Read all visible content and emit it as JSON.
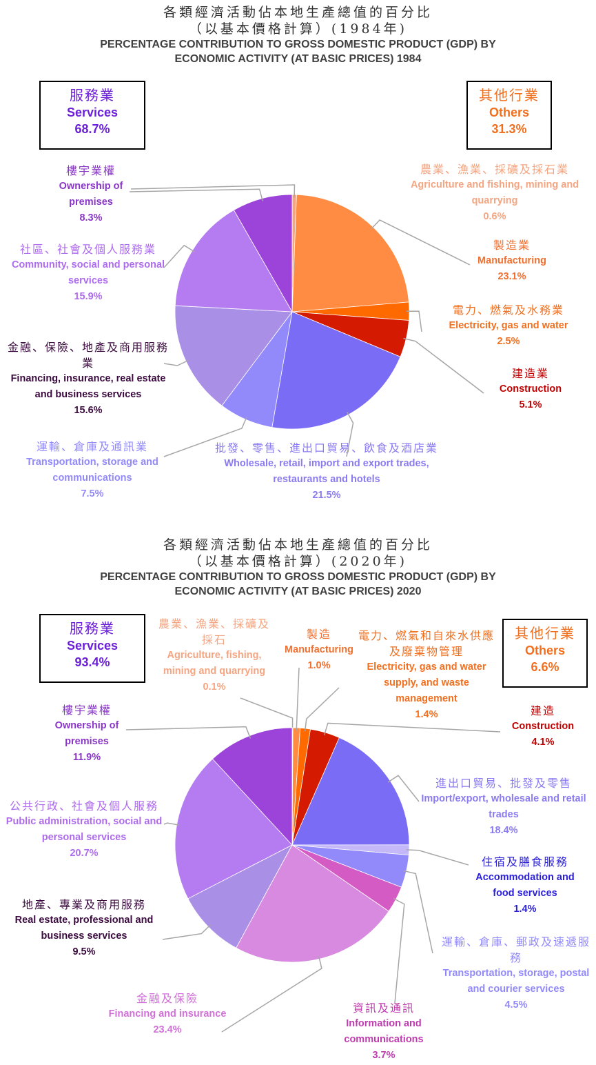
{
  "charts": [
    {
      "title_zh_1": "各類經濟活動佔本地生產總值的百分比",
      "title_zh_2": "（以基本價格計算）(1984年)",
      "title_en_1": "PERCENTAGE CONTRIBUTION TO GROSS DOMESTIC PRODUCT (GDP) BY",
      "title_en_2": "ECONOMIC ACTIVITY (AT BASIC PRICES) 1984",
      "services_box": {
        "zh": "服務業",
        "en": "Services",
        "pct": "68.7%"
      },
      "others_box": {
        "zh": "其他行業",
        "en": "Others",
        "pct": "31.3%"
      },
      "labels": [
        {
          "zh": "農業、漁業、採礦及採石業",
          "en": "Agriculture and fishing, mining and quarrying",
          "pct": "0.6%"
        },
        {
          "zh": "製造業",
          "en": "Manufacturing",
          "pct": "23.1%"
        },
        {
          "zh": "電力、燃氣及水務業",
          "en": "Electricity, gas and water",
          "pct": "2.5%"
        },
        {
          "zh": "建造業",
          "en": "Construction",
          "pct": "5.1%"
        },
        {
          "zh": "批發、零售、進出口貿易、飲食及酒店業",
          "en": "Wholesale, retail, import and export trades, restaurants and hotels",
          "pct": "21.5%"
        },
        {
          "zh": "運輸、倉庫及通訊業",
          "en": "Transportation, storage and communications",
          "pct": "7.5%"
        },
        {
          "zh": "金融、保險、地產及商用服務業",
          "en": "Financing, insurance, real estate and business services",
          "pct": "15.6%"
        },
        {
          "zh": "社區、社會及個人服務業",
          "en": "Community, social and personal services",
          "pct": "15.9%"
        },
        {
          "zh": "樓宇業權",
          "en": "Ownership of premises",
          "pct": "8.3%"
        }
      ]
    },
    {
      "title_zh_1": "各類經濟活動佔本地生產總值的百分比",
      "title_zh_2": "（以基本價格計算）(2020年)",
      "title_en_1": "PERCENTAGE CONTRIBUTION TO GROSS DOMESTIC PRODUCT (GDP) BY",
      "title_en_2": "ECONOMIC ACTIVITY (AT BASIC PRICES) 2020",
      "services_box": {
        "zh": "服務業",
        "en": "Services",
        "pct": "93.4%"
      },
      "others_box": {
        "zh": "其他行業",
        "en": "Others",
        "pct": "6.6%"
      },
      "labels": [
        {
          "zh": "農業、漁業、採礦及採石",
          "en": "Agriculture, fishing, mining and quarrying",
          "pct": "0.1%"
        },
        {
          "zh": "製造",
          "en": "Manufacturing",
          "pct": "1.0%"
        },
        {
          "zh": "電力、燃氣和自來水供應及廢棄物管理",
          "en": "Electricity, gas and water supply, and waste management",
          "pct": "1.4%"
        },
        {
          "zh": "建造",
          "en": "Construction",
          "pct": "4.1%"
        },
        {
          "zh": "進出口貿易、批發及零售",
          "en": "Import/export, wholesale and retail trades",
          "pct": "18.4%"
        },
        {
          "zh": "住宿及膳食服務",
          "en": "Accommodation and food services",
          "pct": "1.4%"
        },
        {
          "zh": "運輸、倉庫、郵政及速遞服務",
          "en": "Transportation, storage, postal and courier services",
          "pct": "4.5%"
        },
        {
          "zh": "資訊及通訊",
          "en": "Information and communications",
          "pct": "3.7%"
        },
        {
          "zh": "金融及保險",
          "en": "Financing and insurance",
          "pct": "23.4%"
        },
        {
          "zh": "地產、專業及商用服務",
          "en": "Real estate, professional and business services",
          "pct": "9.5%"
        },
        {
          "zh": "公共行政、社會及個人服務",
          "en": "Public administration, social and personal services",
          "pct": "20.7%"
        },
        {
          "zh": "樓宇業權",
          "en": "Ownership of premises",
          "pct": "11.9%"
        }
      ]
    }
  ],
  "chart_data": [
    {
      "type": "pie",
      "title": "PERCENTAGE CONTRIBUTION TO GROSS DOMESTIC PRODUCT (GDP) BY ECONOMIC ACTIVITY (AT BASIC PRICES) 1984",
      "categories": [
        "Agriculture and fishing, mining and quarrying",
        "Manufacturing",
        "Electricity, gas and water",
        "Construction",
        "Wholesale, retail, import and export trades, restaurants and hotels",
        "Transportation, storage and communications",
        "Financing, insurance, real estate and business services",
        "Community, social and personal services",
        "Ownership of premises"
      ],
      "values": [
        0.6,
        23.1,
        2.5,
        5.1,
        21.5,
        7.5,
        15.6,
        15.9,
        8.3
      ],
      "colors": [
        "#F4A582",
        "#FF8C42",
        "#FF6A00",
        "#D41A00",
        "#7B6CF6",
        "#9289FA",
        "#A98FE6",
        "#B57CF2",
        "#9C43D9"
      ],
      "label_colors": [
        "#F4A582",
        "#F07030",
        "#F07020",
        "#C00000",
        "#8A7BF0",
        "#9289FA",
        "#3B0A3F",
        "#AE6BEE",
        "#8A35C8"
      ],
      "groups": {
        "Services": 68.7,
        "Others": 31.3
      }
    },
    {
      "type": "pie",
      "title": "PERCENTAGE CONTRIBUTION TO GROSS DOMESTIC PRODUCT (GDP) BY ECONOMIC ACTIVITY (AT BASIC PRICES) 2020",
      "categories": [
        "Agriculture, fishing, mining and quarrying",
        "Manufacturing",
        "Electricity, gas and water supply, and waste management",
        "Construction",
        "Import/export, wholesale and retail trades",
        "Accommodation and food services",
        "Transportation, storage, postal and courier services",
        "Information and communications",
        "Financing and insurance",
        "Real estate, professional and business services",
        "Public administration, social and personal services",
        "Ownership of premises"
      ],
      "values": [
        0.1,
        1.0,
        1.4,
        4.1,
        18.4,
        1.4,
        4.5,
        3.7,
        23.4,
        9.5,
        20.7,
        11.9
      ],
      "colors": [
        "#F4A582",
        "#FF8C42",
        "#FF6A00",
        "#D41A00",
        "#7B6CF6",
        "#C4B8F8",
        "#9289FA",
        "#D55BC4",
        "#D88AE0",
        "#A98FE6",
        "#B57CF2",
        "#9C43D9"
      ],
      "label_colors": [
        "#F4A582",
        "#F07030",
        "#F07020",
        "#C00000",
        "#8A7BF0",
        "#2B1FD9",
        "#9289FA",
        "#C03AB0",
        "#D070D8",
        "#3B0A3F",
        "#AE6BEE",
        "#8A35C8"
      ],
      "groups": {
        "Services": 93.4,
        "Others": 6.6
      }
    }
  ]
}
